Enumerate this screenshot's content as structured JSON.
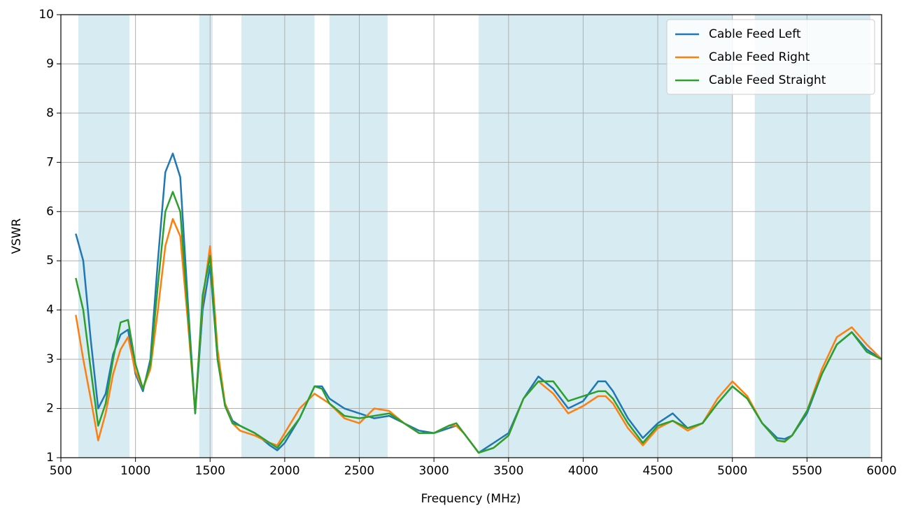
{
  "chart_data": {
    "type": "line",
    "x_label": "Frequency (MHz)",
    "y_label": "VSWR",
    "xlim": [
      500,
      6000
    ],
    "ylim": [
      1,
      10
    ],
    "xticks": [
      500,
      1000,
      1500,
      2000,
      2500,
      3000,
      3500,
      4000,
      4500,
      5000,
      5500,
      6000
    ],
    "yticks": [
      1,
      2,
      3,
      4,
      5,
      6,
      7,
      8,
      9,
      10
    ],
    "grid": true,
    "legend": "upper right",
    "spans": [
      [
        617,
        960
      ],
      [
        1427,
        1517
      ],
      [
        1710,
        2200
      ],
      [
        2300,
        2690
      ],
      [
        3300,
        5000
      ],
      [
        5150,
        5925
      ]
    ],
    "span_color": "#add8e6",
    "x": [
      600,
      650,
      700,
      750,
      800,
      850,
      900,
      950,
      1000,
      1050,
      1100,
      1150,
      1200,
      1250,
      1300,
      1350,
      1400,
      1450,
      1500,
      1550,
      1600,
      1650,
      1700,
      1800,
      1900,
      1950,
      2000,
      2100,
      2200,
      2250,
      2300,
      2400,
      2500,
      2600,
      2700,
      2800,
      2900,
      3000,
      3100,
      3150,
      3200,
      3300,
      3400,
      3500,
      3600,
      3700,
      3800,
      3900,
      4000,
      4100,
      4150,
      4200,
      4300,
      4400,
      4500,
      4600,
      4700,
      4800,
      4900,
      5000,
      5100,
      5200,
      5300,
      5350,
      5400,
      5500,
      5600,
      5700,
      5800,
      5900,
      6000
    ],
    "series": [
      {
        "name": "Cable Feed Left",
        "color": "#1f77b4",
        "values": [
          5.55,
          5.0,
          3.4,
          2.0,
          2.3,
          3.1,
          3.5,
          3.6,
          2.7,
          2.35,
          3.0,
          5.0,
          6.8,
          7.18,
          6.7,
          4.2,
          1.9,
          4.0,
          4.9,
          3.0,
          2.1,
          1.75,
          1.65,
          1.5,
          1.25,
          1.15,
          1.3,
          1.8,
          2.45,
          2.45,
          2.2,
          2.0,
          1.9,
          1.8,
          1.85,
          1.7,
          1.55,
          1.5,
          1.6,
          1.65,
          1.5,
          1.1,
          1.3,
          1.5,
          2.2,
          2.65,
          2.4,
          2.0,
          2.15,
          2.55,
          2.55,
          2.35,
          1.8,
          1.4,
          1.7,
          1.9,
          1.6,
          1.7,
          2.1,
          2.45,
          2.2,
          1.7,
          1.4,
          1.38,
          1.45,
          1.9,
          2.7,
          3.3,
          3.55,
          3.2,
          3.0
        ]
      },
      {
        "name": "Cable Feed Right",
        "color": "#ff7f0e",
        "values": [
          3.9,
          3.0,
          2.2,
          1.35,
          1.9,
          2.7,
          3.2,
          3.45,
          2.75,
          2.4,
          2.8,
          4.0,
          5.3,
          5.85,
          5.5,
          3.8,
          1.95,
          4.2,
          5.3,
          3.2,
          2.1,
          1.7,
          1.55,
          1.45,
          1.3,
          1.25,
          1.5,
          2.0,
          2.3,
          2.2,
          2.1,
          1.8,
          1.7,
          2.0,
          1.95,
          1.7,
          1.5,
          1.5,
          1.65,
          1.65,
          1.5,
          1.1,
          1.2,
          1.45,
          2.2,
          2.55,
          2.3,
          1.9,
          2.05,
          2.25,
          2.25,
          2.1,
          1.6,
          1.25,
          1.6,
          1.75,
          1.55,
          1.7,
          2.2,
          2.55,
          2.25,
          1.7,
          1.35,
          1.32,
          1.45,
          1.95,
          2.8,
          3.45,
          3.65,
          3.3,
          3.0
        ]
      },
      {
        "name": "Cable Feed Straight",
        "color": "#2ca02c",
        "values": [
          4.65,
          4.0,
          2.8,
          1.65,
          2.1,
          3.0,
          3.75,
          3.8,
          2.9,
          2.4,
          2.9,
          4.5,
          6.0,
          6.4,
          6.0,
          4.0,
          1.9,
          4.3,
          5.1,
          3.0,
          2.05,
          1.7,
          1.65,
          1.5,
          1.3,
          1.2,
          1.4,
          1.8,
          2.45,
          2.4,
          2.1,
          1.85,
          1.8,
          1.85,
          1.9,
          1.7,
          1.5,
          1.5,
          1.65,
          1.7,
          1.5,
          1.1,
          1.2,
          1.45,
          2.2,
          2.55,
          2.55,
          2.15,
          2.25,
          2.35,
          2.35,
          2.2,
          1.7,
          1.3,
          1.65,
          1.75,
          1.6,
          1.7,
          2.1,
          2.45,
          2.2,
          1.7,
          1.35,
          1.33,
          1.45,
          1.95,
          2.7,
          3.3,
          3.55,
          3.15,
          3.0
        ]
      }
    ]
  }
}
